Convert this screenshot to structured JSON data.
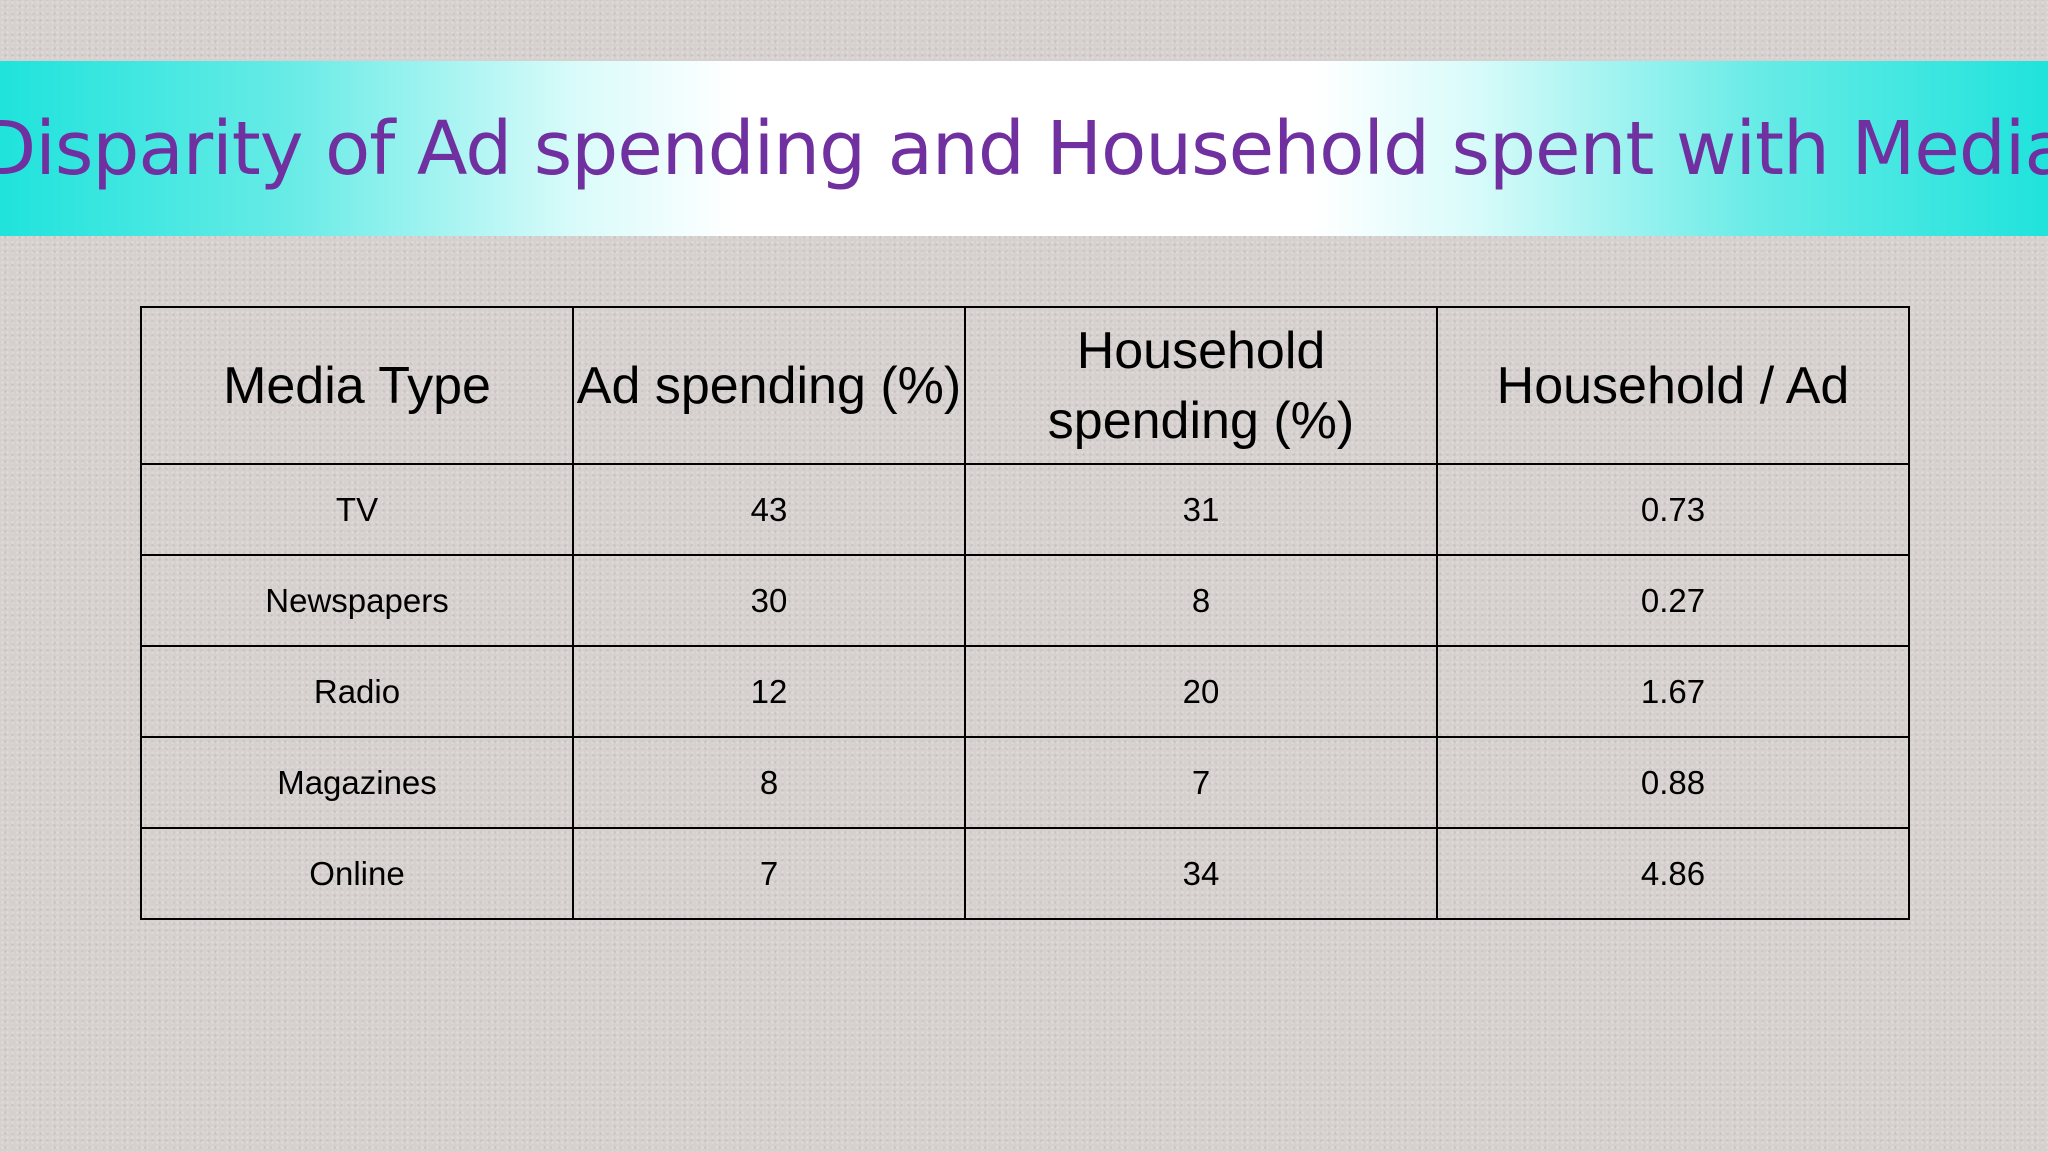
{
  "slide": {
    "title": "Disparity of Ad spending and Household spent with Media"
  },
  "table": {
    "headers": [
      "Media Type",
      "Ad spending (%)",
      "Household spending (%)",
      "Household / Ad"
    ],
    "rows": [
      [
        "TV",
        "43",
        "31",
        "0.73"
      ],
      [
        "Newspapers",
        "30",
        "8",
        "0.27"
      ],
      [
        "Radio",
        "12",
        "20",
        "1.67"
      ],
      [
        "Magazines",
        "8",
        "7",
        "0.88"
      ],
      [
        "Online",
        "7",
        "34",
        "4.86"
      ]
    ]
  },
  "colors": {
    "title": "#7030a0",
    "banner_edge": "#1fe3dc",
    "banner_center": "#ffffff",
    "background": "#d6d1cf"
  }
}
